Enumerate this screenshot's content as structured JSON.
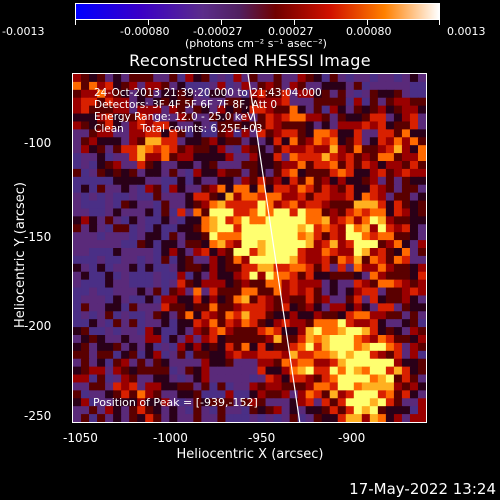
{
  "colorbar": {
    "tick_labels": [
      "-0.0013",
      "-0.00080",
      "-0.00027",
      "0.00027",
      "0.00080",
      "0.0013"
    ],
    "units": "(photons cm⁻² s⁻¹ asec⁻²)"
  },
  "image": {
    "title": "Reconstructed RHESSI Image",
    "info_lines": [
      "24-Oct-2013 21:39:20.000 to 21:43:04.000",
      "Detectors: 3F 4F 5F 6F 7F 8F, Att 0",
      "Energy Range: 12.0 - 25.0 keV",
      "Clean     Total counts: 6.25E+03"
    ],
    "peak_label": "Position of Peak = [-939,-152]"
  },
  "axes": {
    "x_label": "Heliocentric X (arcsec)",
    "y_label": "Heliocentric Y (arcsec)",
    "x_ticks": [
      "-1050",
      "-1000",
      "-950",
      "-900"
    ],
    "y_ticks": [
      "-100",
      "-150",
      "-200",
      "-250"
    ],
    "x_range": [
      -1050,
      -912
    ],
    "y_range": [
      -67,
      -252
    ]
  },
  "footer": {
    "date": "17-May-2022 13:24"
  }
}
